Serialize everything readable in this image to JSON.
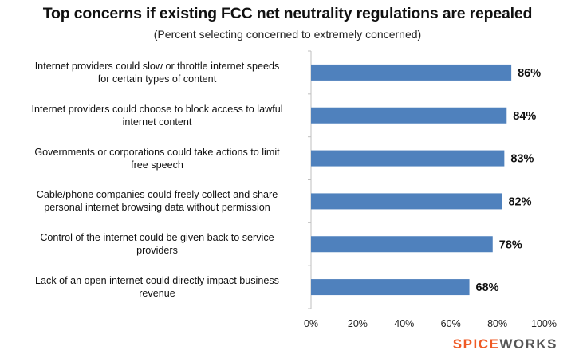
{
  "chart_data": {
    "type": "bar",
    "orientation": "horizontal",
    "title": "Top concerns if existing FCC net neutrality regulations are repealed",
    "subtitle": "(Percent selecting concerned to extremely concerned)",
    "categories": [
      "Internet providers could slow or throttle internet speeds for certain types of content",
      "Internet providers could choose to block access to lawful internet content",
      "Governments or corporations could take actions to limit free speech",
      "Cable/phone companies could freely collect and share personal internet browsing data without permission",
      "Control of the internet could be given back to service providers",
      "Lack of an open internet could directly impact business revenue"
    ],
    "category_lines": [
      [
        "Internet providers could slow or throttle internet speeds",
        "for certain types of content"
      ],
      [
        "Internet providers could choose to block access to lawful",
        "internet content"
      ],
      [
        "Governments or corporations could take actions to limit",
        "free speech"
      ],
      [
        "Cable/phone companies could freely collect and share",
        "personal internet browsing data without permission"
      ],
      [
        "Control of the internet could be given back to service",
        "providers"
      ],
      [
        "Lack of an open internet could directly impact business",
        "revenue"
      ]
    ],
    "values": [
      86,
      84,
      83,
      82,
      78,
      68
    ],
    "data_labels": [
      "86%",
      "84%",
      "83%",
      "82%",
      "78%",
      "68%"
    ],
    "xlim": [
      0,
      100
    ],
    "xticks": [
      "0%",
      "20%",
      "40%",
      "60%",
      "80%",
      "100%"
    ],
    "grid": false,
    "bar_color": "#4f81bd"
  },
  "brand": {
    "part1": "SPICE",
    "part2": "WORKS"
  }
}
